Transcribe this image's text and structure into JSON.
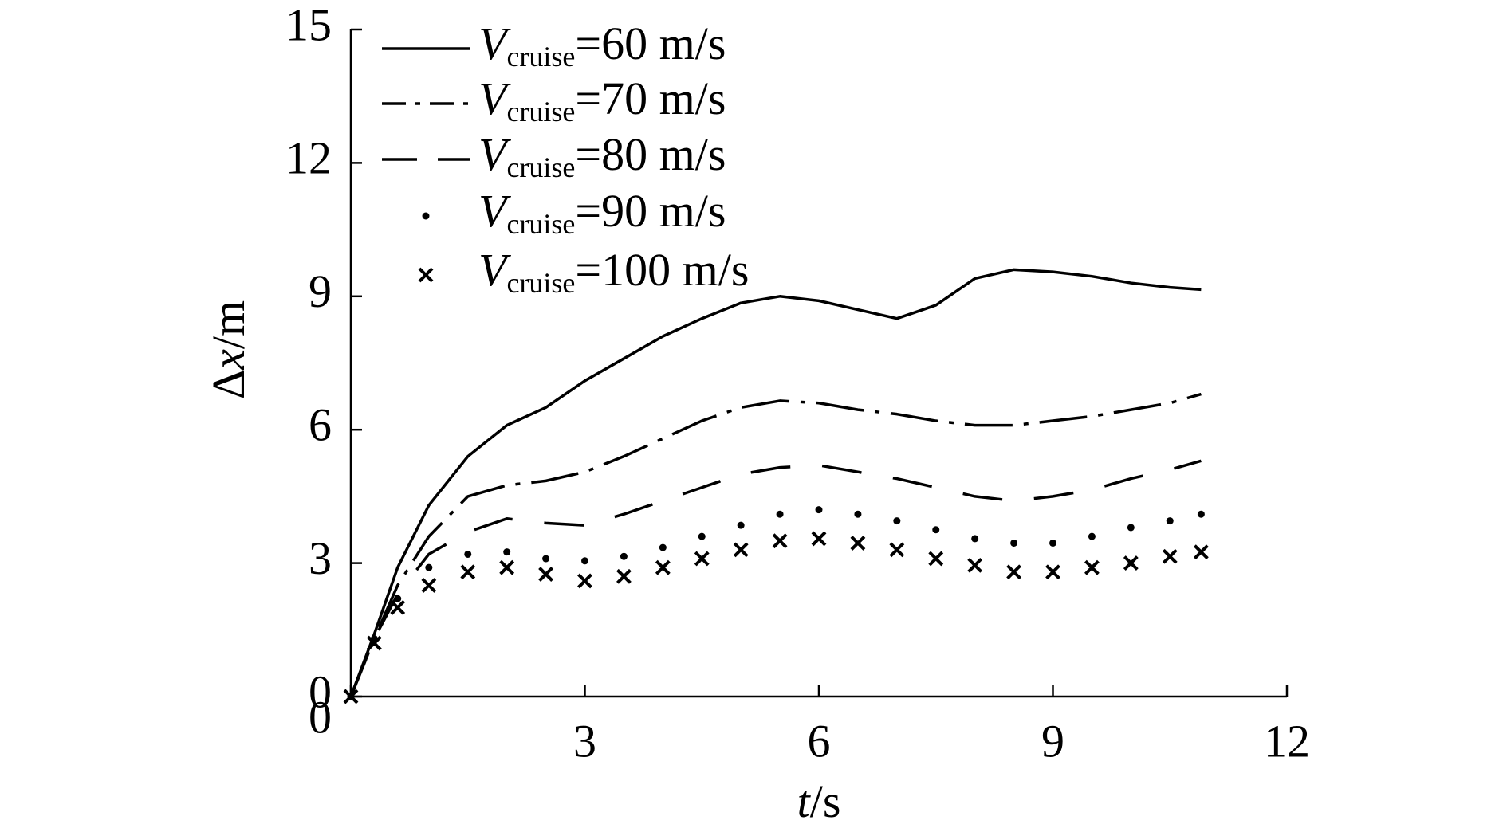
{
  "chart_data": {
    "type": "line",
    "xlabel": "t/s",
    "ylabel": "Δx/m",
    "x": [
      0,
      0.3,
      0.6,
      1,
      1.5,
      2,
      2.5,
      3,
      3.5,
      4,
      4.5,
      5,
      5.5,
      6,
      6.5,
      7,
      7.5,
      8,
      8.5,
      9,
      9.5,
      10,
      10.5,
      10.9
    ],
    "series": [
      {
        "name": "Vcruise=60 m/s",
        "color": "#000000",
        "style": "solid",
        "values": [
          0,
          1.4,
          2.9,
          4.3,
          5.4,
          6.1,
          6.5,
          7.1,
          7.6,
          8.1,
          8.5,
          8.85,
          9.0,
          8.9,
          8.7,
          8.5,
          8.8,
          9.4,
          9.6,
          9.55,
          9.45,
          9.3,
          9.2,
          9.15
        ]
      },
      {
        "name": "Vcruise=70 m/s",
        "color": "#000000",
        "style": "dashdot",
        "values": [
          0,
          1.3,
          2.5,
          3.6,
          4.5,
          4.75,
          4.85,
          5.05,
          5.4,
          5.8,
          6.2,
          6.5,
          6.65,
          6.6,
          6.45,
          6.35,
          6.2,
          6.1,
          6.1,
          6.2,
          6.3,
          6.45,
          6.6,
          6.8
        ]
      },
      {
        "name": "Vcruise=80 m/s",
        "color": "#000000",
        "style": "dashed",
        "values": [
          0,
          1.3,
          2.3,
          3.2,
          3.7,
          4.0,
          3.9,
          3.85,
          4.1,
          4.4,
          4.7,
          5.0,
          5.15,
          5.2,
          5.05,
          4.9,
          4.7,
          4.5,
          4.4,
          4.5,
          4.65,
          4.9,
          5.1,
          5.3
        ]
      },
      {
        "name": "Vcruise=90 m/s",
        "color": "#000000",
        "style": "dotted",
        "values": [
          0,
          1.3,
          2.2,
          2.9,
          3.2,
          3.25,
          3.1,
          3.05,
          3.15,
          3.35,
          3.6,
          3.85,
          4.1,
          4.2,
          4.1,
          3.95,
          3.75,
          3.55,
          3.45,
          3.45,
          3.6,
          3.8,
          3.95,
          4.1
        ]
      },
      {
        "name": "Vcruise=100 m/s",
        "color": "#000000",
        "style": "marker-x",
        "values": [
          0,
          1.2,
          2.0,
          2.5,
          2.8,
          2.9,
          2.75,
          2.6,
          2.7,
          2.9,
          3.1,
          3.3,
          3.5,
          3.55,
          3.45,
          3.3,
          3.1,
          2.95,
          2.8,
          2.8,
          2.9,
          3.0,
          3.15,
          3.25
        ]
      }
    ],
    "xlim": [
      0,
      12
    ],
    "xticks": [
      0,
      3,
      6,
      9,
      12
    ],
    "ylim": [
      0,
      15
    ],
    "yticks": [
      0,
      3,
      6,
      9,
      12,
      15
    ],
    "grid": false,
    "legend": "top-left"
  }
}
